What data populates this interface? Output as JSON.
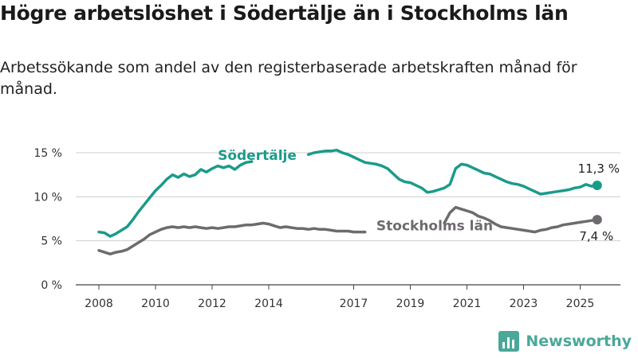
{
  "title": "Högre arbetslöshet i Södertälje än i Stockholms län",
  "subtitle": "Arbetssökande som andel av den registerbaserade arbetskraften månad för månad.",
  "brand": {
    "name": "Newsworthy",
    "color": "#4aa898"
  },
  "chart_data": {
    "type": "line",
    "title": "",
    "xlabel": "",
    "ylabel": "",
    "xlim": [
      2008,
      2025.9
    ],
    "ylim": [
      0,
      15.5
    ],
    "x_ticks": [
      {
        "value": 2008,
        "label": "2008"
      },
      {
        "value": 2010,
        "label": "2010"
      },
      {
        "value": 2012,
        "label": "2012"
      },
      {
        "value": 2014,
        "label": "2014"
      },
      {
        "value": 2017,
        "label": "2017"
      },
      {
        "value": 2019,
        "label": "2019"
      },
      {
        "value": 2021,
        "label": "2021"
      },
      {
        "value": 2023,
        "label": "2023"
      },
      {
        "value": 2025,
        "label": "2025"
      }
    ],
    "y_ticks": [
      {
        "value": 0,
        "label": "0 %"
      },
      {
        "value": 5,
        "label": "5 %"
      },
      {
        "value": 10,
        "label": "10 %"
      },
      {
        "value": 15,
        "label": "15 %"
      }
    ],
    "grid": "horizontal",
    "legend": "direct labels on lines",
    "series": [
      {
        "name": "Södertälje",
        "color": "#1a9b8a",
        "end_label": "11,3 %",
        "end_value": 11.3,
        "segments": [
          [
            [
              2008.0,
              6.0
            ],
            [
              2008.2,
              5.9
            ],
            [
              2008.4,
              5.5
            ],
            [
              2008.6,
              5.8
            ],
            [
              2008.8,
              6.2
            ],
            [
              2009.0,
              6.6
            ],
            [
              2009.2,
              7.4
            ],
            [
              2009.4,
              8.3
            ],
            [
              2009.6,
              9.1
            ],
            [
              2009.8,
              9.9
            ],
            [
              2010.0,
              10.7
            ],
            [
              2010.2,
              11.3
            ],
            [
              2010.4,
              12.0
            ],
            [
              2010.6,
              12.5
            ],
            [
              2010.8,
              12.2
            ],
            [
              2011.0,
              12.6
            ],
            [
              2011.2,
              12.3
            ],
            [
              2011.4,
              12.5
            ],
            [
              2011.6,
              13.1
            ],
            [
              2011.8,
              12.8
            ],
            [
              2012.0,
              13.2
            ],
            [
              2012.2,
              13.5
            ],
            [
              2012.4,
              13.3
            ],
            [
              2012.6,
              13.5
            ],
            [
              2012.8,
              13.1
            ],
            [
              2013.0,
              13.6
            ],
            [
              2013.2,
              13.9
            ],
            [
              2013.4,
              14.0
            ]
          ],
          [
            [
              2015.4,
              14.8
            ],
            [
              2015.6,
              15.0
            ],
            [
              2015.8,
              15.1
            ],
            [
              2016.0,
              15.2
            ],
            [
              2016.2,
              15.2
            ],
            [
              2016.4,
              15.3
            ],
            [
              2016.6,
              15.0
            ],
            [
              2016.8,
              14.8
            ],
            [
              2017.0,
              14.5
            ],
            [
              2017.2,
              14.2
            ],
            [
              2017.4,
              13.9
            ],
            [
              2017.6,
              13.8
            ],
            [
              2017.8,
              13.7
            ],
            [
              2018.0,
              13.5
            ],
            [
              2018.2,
              13.2
            ],
            [
              2018.4,
              12.6
            ],
            [
              2018.6,
              12.0
            ],
            [
              2018.8,
              11.7
            ],
            [
              2019.0,
              11.6
            ],
            [
              2019.2,
              11.3
            ],
            [
              2019.4,
              11.0
            ],
            [
              2019.6,
              10.5
            ],
            [
              2019.8,
              10.6
            ],
            [
              2020.0,
              10.8
            ],
            [
              2020.2,
              11.0
            ],
            [
              2020.4,
              11.4
            ],
            [
              2020.6,
              13.2
            ],
            [
              2020.8,
              13.7
            ],
            [
              2021.0,
              13.6
            ],
            [
              2021.2,
              13.3
            ],
            [
              2021.4,
              13.0
            ],
            [
              2021.6,
              12.7
            ],
            [
              2021.8,
              12.6
            ],
            [
              2022.0,
              12.3
            ],
            [
              2022.2,
              12.0
            ],
            [
              2022.4,
              11.7
            ],
            [
              2022.6,
              11.5
            ],
            [
              2022.8,
              11.4
            ],
            [
              2023.0,
              11.2
            ],
            [
              2023.2,
              10.9
            ],
            [
              2023.4,
              10.6
            ],
            [
              2023.6,
              10.3
            ],
            [
              2023.8,
              10.4
            ],
            [
              2024.0,
              10.5
            ],
            [
              2024.2,
              10.6
            ],
            [
              2024.4,
              10.7
            ],
            [
              2024.6,
              10.8
            ],
            [
              2024.8,
              11.0
            ],
            [
              2025.0,
              11.1
            ],
            [
              2025.2,
              11.4
            ],
            [
              2025.4,
              11.2
            ],
            [
              2025.6,
              11.3
            ]
          ]
        ]
      },
      {
        "name": "Stockholms län",
        "color": "#6e6a6f",
        "end_label": "7,4 %",
        "end_value": 7.4,
        "segments": [
          [
            [
              2008.0,
              3.9
            ],
            [
              2008.2,
              3.7
            ],
            [
              2008.4,
              3.5
            ],
            [
              2008.6,
              3.7
            ],
            [
              2008.8,
              3.8
            ],
            [
              2009.0,
              4.0
            ],
            [
              2009.2,
              4.4
            ],
            [
              2009.4,
              4.8
            ],
            [
              2009.6,
              5.2
            ],
            [
              2009.8,
              5.7
            ],
            [
              2010.0,
              6.0
            ],
            [
              2010.2,
              6.3
            ],
            [
              2010.4,
              6.5
            ],
            [
              2010.6,
              6.6
            ],
            [
              2010.8,
              6.5
            ],
            [
              2011.0,
              6.6
            ],
            [
              2011.2,
              6.5
            ],
            [
              2011.4,
              6.6
            ],
            [
              2011.6,
              6.5
            ],
            [
              2011.8,
              6.4
            ],
            [
              2012.0,
              6.5
            ],
            [
              2012.2,
              6.4
            ],
            [
              2012.4,
              6.5
            ],
            [
              2012.6,
              6.6
            ],
            [
              2012.8,
              6.6
            ],
            [
              2013.0,
              6.7
            ],
            [
              2013.2,
              6.8
            ],
            [
              2013.4,
              6.8
            ],
            [
              2013.6,
              6.9
            ],
            [
              2013.8,
              7.0
            ],
            [
              2014.0,
              6.9
            ],
            [
              2014.2,
              6.7
            ],
            [
              2014.4,
              6.5
            ],
            [
              2014.6,
              6.6
            ],
            [
              2014.8,
              6.5
            ],
            [
              2015.0,
              6.4
            ],
            [
              2015.2,
              6.4
            ],
            [
              2015.4,
              6.3
            ],
            [
              2015.6,
              6.4
            ],
            [
              2015.8,
              6.3
            ],
            [
              2016.0,
              6.3
            ],
            [
              2016.2,
              6.2
            ],
            [
              2016.4,
              6.1
            ],
            [
              2016.6,
              6.1
            ],
            [
              2016.8,
              6.1
            ],
            [
              2017.0,
              6.0
            ],
            [
              2017.2,
              6.0
            ],
            [
              2017.4,
              6.0
            ]
          ],
          [
            [
              2020.2,
              7.0
            ],
            [
              2020.4,
              8.2
            ],
            [
              2020.6,
              8.8
            ],
            [
              2020.8,
              8.6
            ],
            [
              2021.0,
              8.4
            ],
            [
              2021.2,
              8.2
            ],
            [
              2021.4,
              7.8
            ],
            [
              2021.6,
              7.6
            ],
            [
              2021.8,
              7.3
            ],
            [
              2022.0,
              6.9
            ],
            [
              2022.2,
              6.6
            ],
            [
              2022.4,
              6.5
            ],
            [
              2022.6,
              6.4
            ],
            [
              2022.8,
              6.3
            ],
            [
              2023.0,
              6.2
            ],
            [
              2023.2,
              6.1
            ],
            [
              2023.4,
              6.0
            ],
            [
              2023.6,
              6.2
            ],
            [
              2023.8,
              6.3
            ],
            [
              2024.0,
              6.5
            ],
            [
              2024.2,
              6.6
            ],
            [
              2024.4,
              6.8
            ],
            [
              2024.6,
              6.9
            ],
            [
              2024.8,
              7.0
            ],
            [
              2025.0,
              7.1
            ],
            [
              2025.2,
              7.2
            ],
            [
              2025.4,
              7.3
            ],
            [
              2025.6,
              7.4
            ]
          ]
        ]
      }
    ]
  }
}
